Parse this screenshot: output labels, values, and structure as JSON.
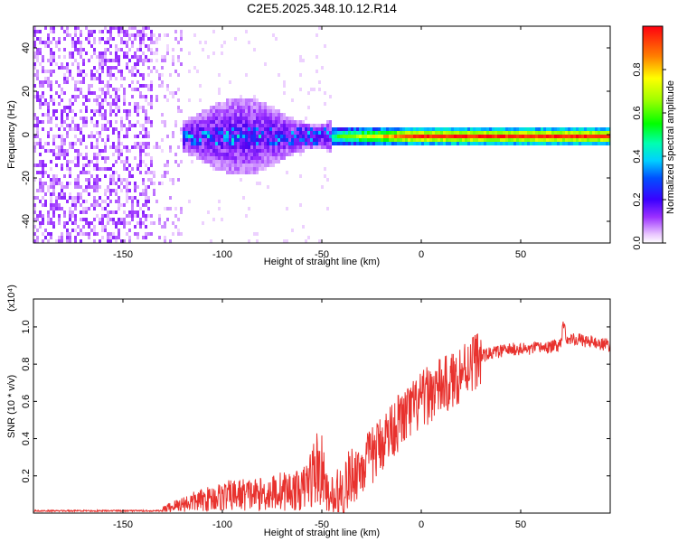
{
  "chart_data": [
    {
      "type": "heatmap",
      "title": "C2E5.2025.348.10.12.R14",
      "xlabel": "Height of straight line (km)",
      "ylabel": "Frequency (Hz)",
      "xlim": [
        -195,
        95
      ],
      "ylim": [
        -50,
        50
      ],
      "xticks": [
        -150,
        -100,
        -50,
        0,
        50
      ],
      "yticks": [
        -40,
        -20,
        0,
        20,
        40
      ],
      "colorbar": {
        "label": "Normalized spectral amplitude",
        "range": [
          0.0,
          1.0
        ],
        "ticks": [
          0.0,
          0.2,
          0.4,
          0.6,
          0.8
        ]
      },
      "ridge": {
        "x_start": -45,
        "x_end": 95,
        "frequency_center": 0,
        "amplitude_peak": 0.95
      }
    },
    {
      "type": "line",
      "xlabel": "Height of straight line (km)",
      "ylabel": "SNR (10 * v/v)",
      "y_multiplier": "(x10⁴)",
      "xlim": [
        -195,
        95
      ],
      "ylim": [
        0,
        1.15
      ],
      "xticks": [
        -150,
        -100,
        -50,
        0,
        50
      ],
      "yticks": [
        0.2,
        0.4,
        0.6,
        0.8,
        1.0
      ],
      "series": [
        {
          "name": "SNR",
          "color": "#e8322e",
          "x": [
            -195,
            -150,
            -130,
            -120,
            -110,
            -100,
            -90,
            -80,
            -70,
            -60,
            -55,
            -52,
            -50,
            -47,
            -45,
            -42,
            -40,
            -35,
            -30,
            -25,
            -20,
            -15,
            -10,
            -5,
            0,
            5,
            10,
            15,
            20,
            25,
            30,
            35,
            40,
            45,
            50,
            55,
            60,
            65,
            70,
            72,
            73,
            75,
            80,
            85,
            90,
            95
          ],
          "values": [
            0.01,
            0.01,
            0.02,
            0.05,
            0.07,
            0.09,
            0.1,
            0.1,
            0.12,
            0.12,
            0.2,
            0.25,
            0.22,
            0.1,
            0.05,
            0.08,
            0.12,
            0.2,
            0.25,
            0.3,
            0.38,
            0.45,
            0.5,
            0.55,
            0.6,
            0.65,
            0.68,
            0.7,
            0.76,
            0.81,
            0.84,
            0.86,
            0.87,
            0.88,
            0.88,
            0.88,
            0.89,
            0.89,
            0.91,
            1.05,
            0.92,
            0.94,
            0.93,
            0.92,
            0.91,
            0.9
          ]
        }
      ]
    }
  ]
}
